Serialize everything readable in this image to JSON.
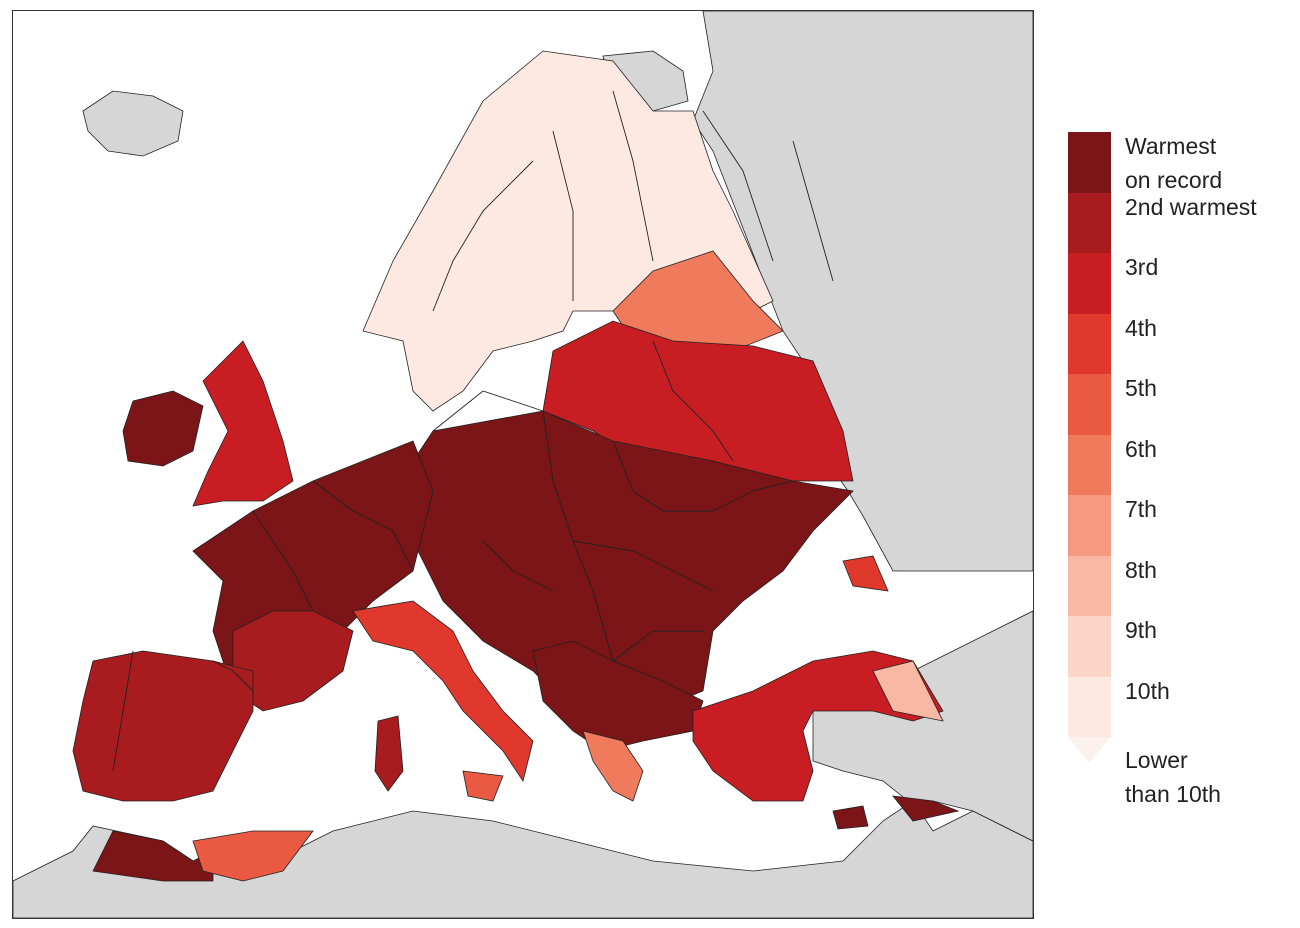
{
  "legend": {
    "items": [
      {
        "rank": 1,
        "label_lines": [
          "Warmest",
          "on record"
        ],
        "color": "#7b1518"
      },
      {
        "rank": 2,
        "label_lines": [
          "2nd warmest"
        ],
        "color": "#a81c20"
      },
      {
        "rank": 3,
        "label_lines": [
          "3rd"
        ],
        "color": "#c91d24"
      },
      {
        "rank": 4,
        "label_lines": [
          "4th"
        ],
        "color": "#e0382c"
      },
      {
        "rank": 5,
        "label_lines": [
          "5th"
        ],
        "color": "#ea5a42"
      },
      {
        "rank": 6,
        "label_lines": [
          "6th"
        ],
        "color": "#f07a5c"
      },
      {
        "rank": 7,
        "label_lines": [
          "7th"
        ],
        "color": "#f59a80"
      },
      {
        "rank": 8,
        "label_lines": [
          "8th"
        ],
        "color": "#f8b8a3"
      },
      {
        "rank": 9,
        "label_lines": [
          "9th"
        ],
        "color": "#fbd6c8"
      },
      {
        "rank": 10,
        "label_lines": [
          "10th"
        ],
        "color": "#fde9e2"
      }
    ],
    "lower": {
      "label_lines": [
        "Lower",
        "than 10th"
      ],
      "color": "#fdf1ed"
    }
  },
  "map_colors": {
    "sea": "#ffffff",
    "no_data_land": "#d6d6d6",
    "border": "#222222"
  }
}
